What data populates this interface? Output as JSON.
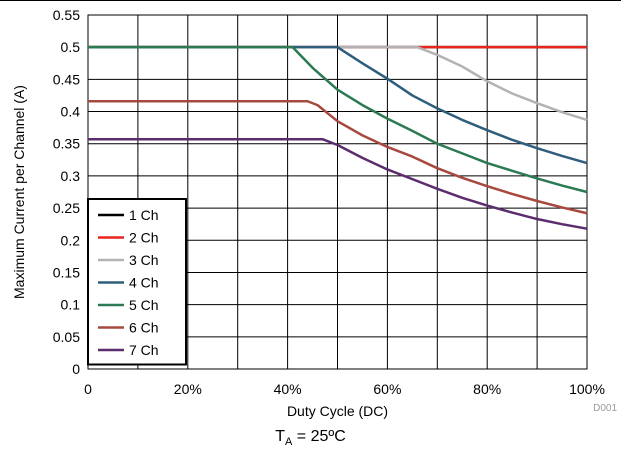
{
  "chart_data": {
    "type": "line",
    "xlabel": "Duty Cycle (DC)",
    "ylabel": "Maximum Current per Channel (A)",
    "xlim": [
      0,
      100
    ],
    "ylim": [
      0,
      0.55
    ],
    "x_ticks": [
      "0",
      "20%",
      "40%",
      "60%",
      "80%",
      "100%"
    ],
    "y_ticks": [
      "0",
      "0.05",
      "0.1",
      "0.15",
      "0.2",
      "0.25",
      "0.3",
      "0.35",
      "0.4",
      "0.45",
      "0.5",
      "0.55"
    ],
    "grid": true,
    "legend_position": "bottom-left",
    "series": [
      {
        "name": "1 Ch",
        "color": "#000000",
        "x": [
          0,
          10,
          20,
          30,
          40,
          50,
          60,
          70,
          80,
          90,
          100
        ],
        "y": [
          0.5,
          0.5,
          0.5,
          0.5,
          0.5,
          0.5,
          0.5,
          0.5,
          0.5,
          0.5,
          0.5
        ]
      },
      {
        "name": "2 Ch",
        "color": "#e8251f",
        "x": [
          0,
          10,
          20,
          30,
          40,
          50,
          60,
          70,
          80,
          90,
          100
        ],
        "y": [
          0.5,
          0.5,
          0.5,
          0.5,
          0.5,
          0.5,
          0.5,
          0.5,
          0.5,
          0.5,
          0.5
        ]
      },
      {
        "name": "3 Ch",
        "color": "#b3b3b3",
        "x": [
          0,
          20,
          40,
          60,
          66,
          70,
          75,
          80,
          85,
          90,
          95,
          100
        ],
        "y": [
          0.5,
          0.5,
          0.5,
          0.5,
          0.5,
          0.488,
          0.47,
          0.447,
          0.428,
          0.413,
          0.399,
          0.387
        ]
      },
      {
        "name": "4 Ch",
        "color": "#2f5e7c",
        "x": [
          0,
          20,
          40,
          50,
          55,
          60,
          65,
          70,
          75,
          80,
          85,
          90,
          95,
          100
        ],
        "y": [
          0.5,
          0.5,
          0.5,
          0.5,
          0.475,
          0.451,
          0.425,
          0.405,
          0.387,
          0.371,
          0.356,
          0.343,
          0.331,
          0.32
        ]
      },
      {
        "name": "5 Ch",
        "color": "#2c7a54",
        "x": [
          0,
          20,
          40,
          41,
          45,
          50,
          55,
          60,
          65,
          70,
          75,
          80,
          85,
          90,
          95,
          100
        ],
        "y": [
          0.5,
          0.5,
          0.5,
          0.5,
          0.468,
          0.434,
          0.41,
          0.389,
          0.37,
          0.35,
          0.335,
          0.32,
          0.308,
          0.296,
          0.285,
          0.275
        ]
      },
      {
        "name": "6 Ch",
        "color": "#a8493f",
        "x": [
          0,
          20,
          40,
          44,
          46,
          50,
          55,
          60,
          65,
          70,
          75,
          80,
          85,
          90,
          95,
          100
        ],
        "y": [
          0.416,
          0.416,
          0.416,
          0.416,
          0.41,
          0.385,
          0.363,
          0.345,
          0.33,
          0.312,
          0.297,
          0.284,
          0.272,
          0.261,
          0.251,
          0.242
        ]
      },
      {
        "name": "7 Ch",
        "color": "#5c2d6e",
        "x": [
          0,
          20,
          40,
          47,
          50,
          55,
          60,
          65,
          70,
          75,
          80,
          85,
          90,
          95,
          100
        ],
        "y": [
          0.357,
          0.357,
          0.357,
          0.357,
          0.348,
          0.328,
          0.31,
          0.295,
          0.28,
          0.266,
          0.254,
          0.243,
          0.233,
          0.225,
          0.218
        ]
      }
    ],
    "figure_id": "D001",
    "caption": {
      "main": "T",
      "sub": "A",
      "rest": " = 25ºC"
    }
  }
}
